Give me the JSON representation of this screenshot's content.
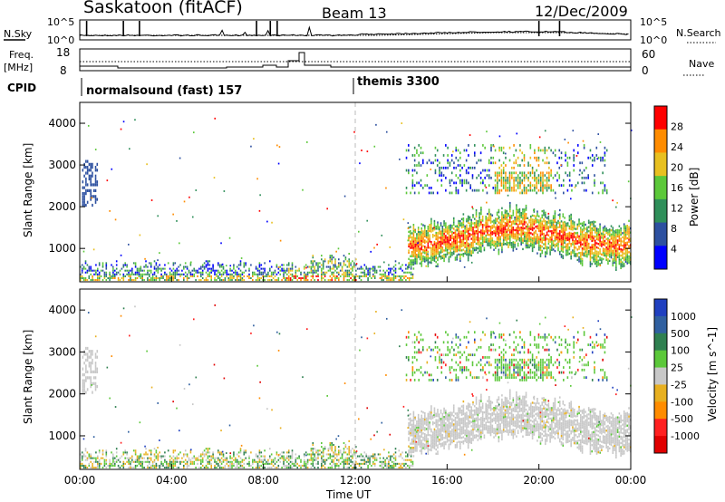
{
  "header": {
    "title": "Saskatoon (fitACF)",
    "beam": "Beam 13",
    "date": "12/Dec/2009"
  },
  "status_panels": {
    "nsky_label": "N.Sky",
    "nsky_ticks": [
      "10^5",
      "10^0"
    ],
    "nsearch_ticks": [
      "10^5",
      "10^0"
    ],
    "nsearch_label": "N.Search",
    "freq_label": "Freq.",
    "freq_unit": "[MHz]",
    "freq_ticks": [
      "18",
      "8"
    ],
    "nave_ticks": [
      "60",
      "0"
    ],
    "nave_label": "Nave",
    "cpid_label": "CPID",
    "cpid_segments": [
      "normalsound (fast) 157",
      "themis 3300"
    ]
  },
  "chart_data": [
    {
      "type": "heatmap",
      "panel": "power",
      "ylabel": "Slant Range [km]",
      "yticks": [
        "1000",
        "2000",
        "3000",
        "4000"
      ],
      "ylim": [
        200,
        4500
      ],
      "xlim": [
        0,
        24
      ],
      "colorbar_label": "Power [dB]",
      "colorbar_ticks": [
        "4",
        "8",
        "12",
        "16",
        "20",
        "24",
        "28"
      ],
      "colors": [
        "#0000ff",
        "#2d50a0",
        "#2f8f5a",
        "#5cc83a",
        "#e8c020",
        "#ff8c00",
        "#ff0000"
      ],
      "features": [
        {
          "time": [
            0.0,
            11.9
          ],
          "range": [
            200,
            600
          ],
          "level": "mixed near-range scatter"
        },
        {
          "time": [
            14.5,
            24.0
          ],
          "range": [
            700,
            2200
          ],
          "level": "strong band"
        },
        {
          "time": [
            14.0,
            23.0
          ],
          "range": [
            2400,
            3600
          ],
          "level": "patchy"
        }
      ]
    },
    {
      "type": "heatmap",
      "panel": "velocity",
      "ylabel": "Slant Range [km]",
      "yticks": [
        "1000",
        "2000",
        "3000",
        "4000"
      ],
      "ylim": [
        200,
        4500
      ],
      "xlim": [
        0,
        24
      ],
      "xticks": [
        "00:00",
        "04:00",
        "08:00",
        "12:00",
        "16:00",
        "20:00",
        "00:00"
      ],
      "xlabel": "Time UT",
      "colorbar_label": "Velocity [m s^-1]",
      "colorbar_ticks": [
        "1000",
        "500",
        "100",
        "25",
        "-25",
        "-100",
        "-500",
        "-1000"
      ],
      "colors": [
        "#2040c0",
        "#3060a0",
        "#2f8050",
        "#5cc83a",
        "#c8c8c8",
        "#e8b020",
        "#ff8c00",
        "#ff2020",
        "#e00000"
      ],
      "features": [
        {
          "time": [
            0.0,
            11.9
          ],
          "range": [
            200,
            600
          ],
          "level": "slow flow, green/orange"
        },
        {
          "time": [
            14.5,
            24.0
          ],
          "range": [
            700,
            2200
          ],
          "level": "near zero, grey"
        },
        {
          "time": [
            14.0,
            23.0
          ],
          "range": [
            2400,
            3600
          ],
          "level": "patchy green"
        }
      ]
    }
  ]
}
